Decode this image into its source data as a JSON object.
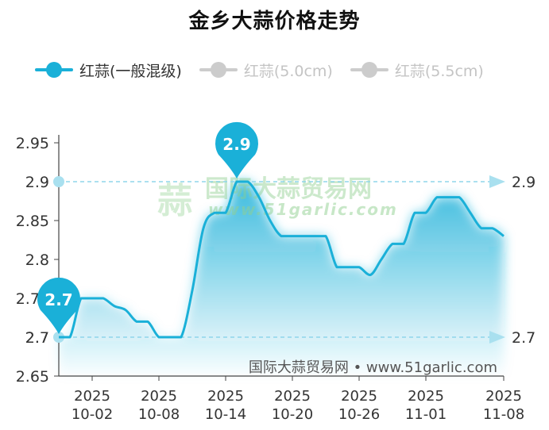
{
  "chart_data": {
    "type": "area",
    "title": "金乡大蒜价格走势",
    "series": [
      {
        "name": "红蒜(一般混级)",
        "color": "#1ab0d8",
        "active": true,
        "points": [
          [
            "2025-09-29",
            2.7
          ],
          [
            "2025-09-30",
            2.7
          ],
          [
            "2025-10-01",
            2.75
          ],
          [
            "2025-10-02",
            2.75
          ],
          [
            "2025-10-03",
            2.75
          ],
          [
            "2025-10-04",
            2.74
          ],
          [
            "2025-10-05",
            2.735
          ],
          [
            "2025-10-06",
            2.72
          ],
          [
            "2025-10-07",
            2.72
          ],
          [
            "2025-10-08",
            2.7
          ],
          [
            "2025-10-09",
            2.7
          ],
          [
            "2025-10-10",
            2.7
          ],
          [
            "2025-10-11",
            2.76
          ],
          [
            "2025-10-12",
            2.84
          ],
          [
            "2025-10-13",
            2.86
          ],
          [
            "2025-10-14",
            2.86
          ],
          [
            "2025-10-15",
            2.9
          ],
          [
            "2025-10-16",
            2.9
          ],
          [
            "2025-10-17",
            2.88
          ],
          [
            "2025-10-18",
            2.85
          ],
          [
            "2025-10-19",
            2.83
          ],
          [
            "2025-10-20",
            2.83
          ],
          [
            "2025-10-21",
            2.83
          ],
          [
            "2025-10-22",
            2.83
          ],
          [
            "2025-10-23",
            2.83
          ],
          [
            "2025-10-24",
            2.79
          ],
          [
            "2025-10-25",
            2.79
          ],
          [
            "2025-10-26",
            2.79
          ],
          [
            "2025-10-27",
            2.78
          ],
          [
            "2025-10-28",
            2.8
          ],
          [
            "2025-10-29",
            2.82
          ],
          [
            "2025-10-30",
            2.82
          ],
          [
            "2025-10-31",
            2.86
          ],
          [
            "2025-11-01",
            2.86
          ],
          [
            "2025-11-02",
            2.88
          ],
          [
            "2025-11-03",
            2.88
          ],
          [
            "2025-11-04",
            2.88
          ],
          [
            "2025-11-05",
            2.86
          ],
          [
            "2025-11-06",
            2.84
          ],
          [
            "2025-11-07",
            2.84
          ],
          [
            "2025-11-08",
            2.83
          ]
        ]
      },
      {
        "name": "红蒜(5.0cm)",
        "color": "#cccccc",
        "active": false,
        "points": []
      },
      {
        "name": "红蒜(5.5cm)",
        "color": "#cccccc",
        "active": false,
        "points": []
      }
    ],
    "y_ticks": [
      "2.65",
      "2.7",
      "2.7",
      "2.75",
      "2.8",
      "2.85",
      "2.9",
      "2.95"
    ],
    "y_tick_values": [
      2.65,
      2.7,
      2.7,
      2.75,
      2.8,
      2.85,
      2.9,
      2.95
    ],
    "ylim": [
      2.65,
      2.95
    ],
    "x_ticks": [
      {
        "year": "2025",
        "date": "10-02",
        "value": "2025-10-02"
      },
      {
        "year": "2025",
        "date": "10-08",
        "value": "2025-10-08"
      },
      {
        "year": "2025",
        "date": "10-14",
        "value": "2025-10-14"
      },
      {
        "year": "2025",
        "date": "10-20",
        "value": "2025-10-20"
      },
      {
        "year": "2025",
        "date": "10-26",
        "value": "2025-10-26"
      },
      {
        "year": "2025",
        "date": "11-01",
        "value": "2025-11-01"
      },
      {
        "year": "2025",
        "date": "11-08",
        "value": "2025-11-08"
      }
    ],
    "xlim": [
      "2025-09-29",
      "2025-11-08"
    ],
    "max_marker": {
      "label": "2.9",
      "x": "2025-10-15",
      "y": 2.9
    },
    "min_marker": {
      "label": "2.7",
      "x": "2025-09-29",
      "y": 2.7
    },
    "max_line": {
      "label": "2.9",
      "value": 2.9
    },
    "min_line": {
      "label": "2.7",
      "value": 2.7
    },
    "watermark": {
      "logo": "蒜",
      "name": "国际大蒜贸易网",
      "url": "www.51garlic.com"
    },
    "source": "国际大蒜贸易网 • www.51garlic.com",
    "grid": false,
    "legend_position": "top-left"
  }
}
